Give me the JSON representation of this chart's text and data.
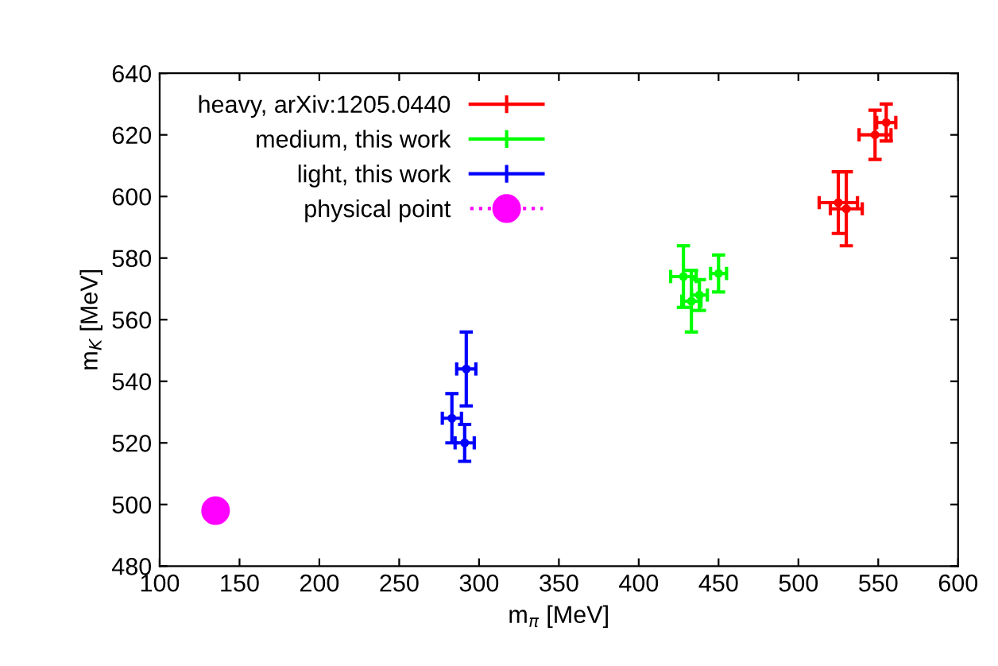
{
  "chart_data": {
    "type": "scatter",
    "xlabel": "m$_{π}$ [MeV]",
    "ylabel": "m$_{K}$ [MeV]",
    "xlim": [
      100,
      600
    ],
    "xticks": [
      100,
      150,
      200,
      250,
      300,
      350,
      400,
      450,
      500,
      550,
      600
    ],
    "ylim": [
      480,
      640
    ],
    "yticks": [
      480,
      500,
      520,
      540,
      560,
      580,
      600,
      620,
      640
    ],
    "grid": false,
    "legend": "top left",
    "series": [
      {
        "name": "heavy, arXiv:1205.0440",
        "color": "#ff0000",
        "x": [
          525,
          530,
          548,
          555
        ],
        "values": [
          598,
          596,
          620,
          624
        ],
        "errors": [
          10,
          12,
          8,
          6
        ],
        "xerrors": [
          12,
          10,
          10,
          6
        ]
      },
      {
        "name": "medium, this work",
        "color": "#00ff00",
        "x": [
          428,
          433,
          438,
          450
        ],
        "values": [
          574,
          566,
          568,
          575
        ],
        "errors": [
          10,
          10,
          5,
          6
        ],
        "xerrors": [
          8,
          6,
          5,
          5
        ]
      },
      {
        "name": "light, this work",
        "color": "#0000ff",
        "x": [
          283,
          291,
          292
        ],
        "values": [
          528,
          520,
          544
        ],
        "errors": [
          8,
          6,
          12
        ],
        "xerrors": [
          6,
          6,
          6
        ]
      },
      {
        "name": "physical point",
        "color": "#ff00ff",
        "x": [
          135
        ],
        "values": [
          498
        ],
        "marker": "circle"
      }
    ]
  }
}
